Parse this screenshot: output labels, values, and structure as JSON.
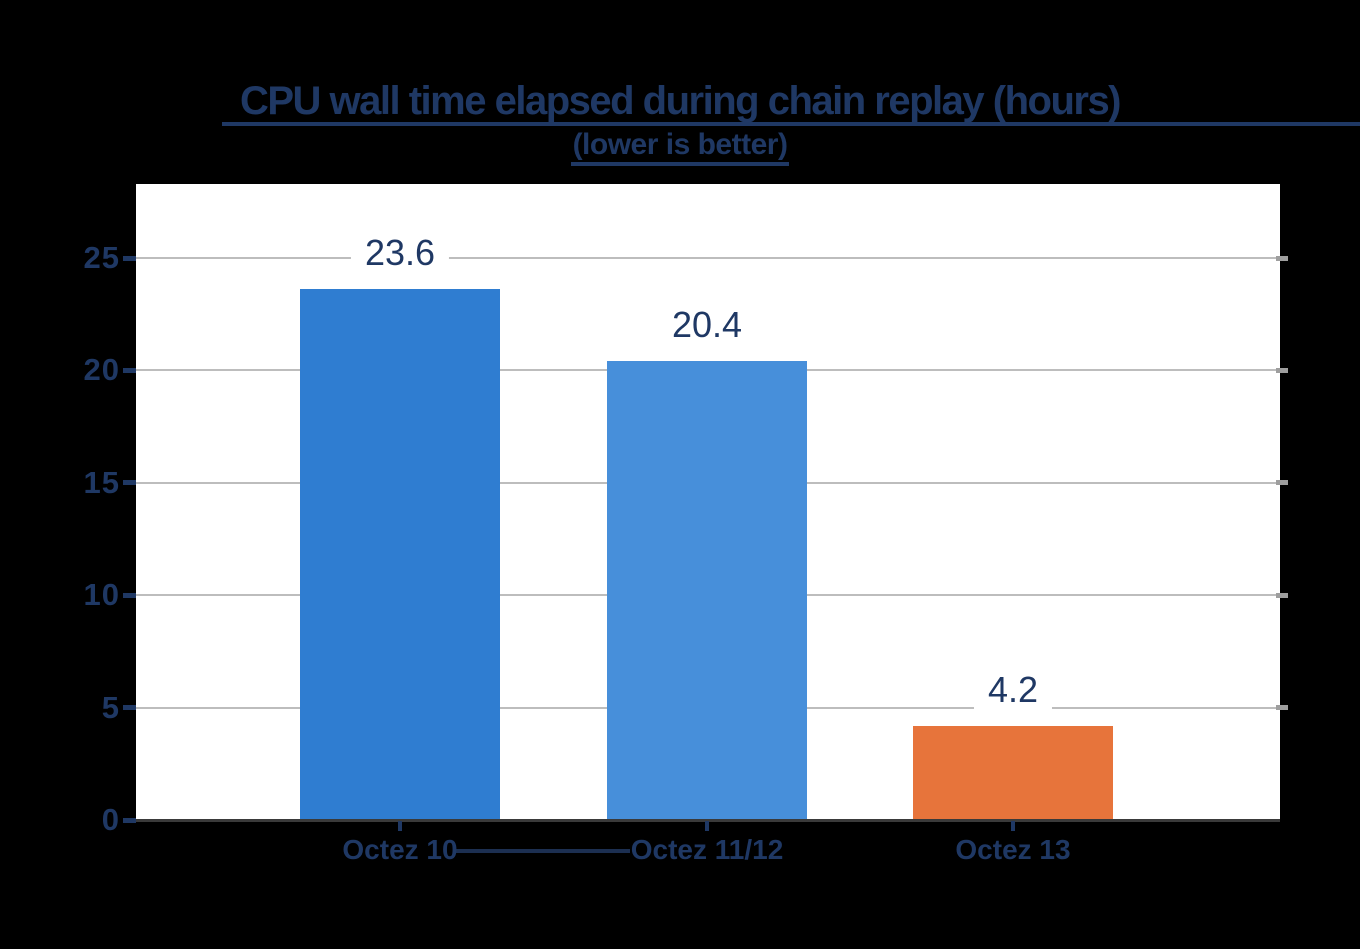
{
  "chart_data": {
    "type": "bar",
    "title": "CPU wall time elapsed during chain replay (hours)",
    "subtitle": "(lower is better)",
    "categories": [
      "Octez 10",
      "Octez 11/12",
      "Octez 13"
    ],
    "values": [
      23.6,
      20.4,
      4.2
    ],
    "value_labels": [
      "23.6",
      "20.4",
      "4.2"
    ],
    "bar_colors": [
      "#2F7DD1",
      "#478FDA",
      "#E7743B"
    ],
    "yticks": [
      0,
      5,
      10,
      15,
      20,
      25
    ],
    "ylim": [
      0,
      28.3
    ],
    "xlabel": "",
    "ylabel": "",
    "grid": true,
    "legend": false
  },
  "style": {
    "page_background": "#000000",
    "plot_background": "#FFFFFF",
    "text_color": "#1F3864",
    "gridline_color": "#BDBDBD",
    "axis_line_color": "#3A3A3A",
    "title_underlined": true,
    "subtitle_underlined": true
  }
}
